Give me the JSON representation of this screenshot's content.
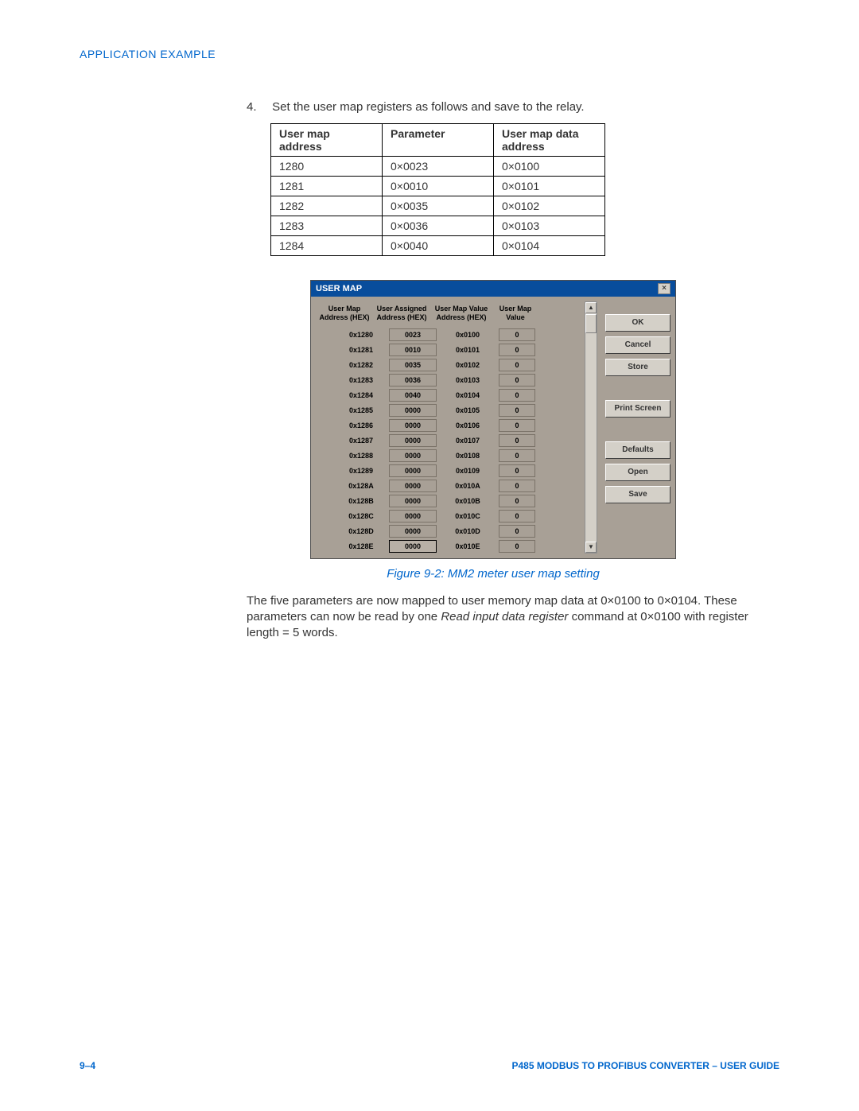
{
  "header": {
    "title": "APPLICATION EXAMPLE"
  },
  "step": {
    "num": "4.",
    "text": "Set the user map registers as follows and save to the relay."
  },
  "table": {
    "headers": {
      "c1": "User map address",
      "c2": "Parameter",
      "c3_line1": "User map data",
      "c3_line2": "address"
    },
    "rows": [
      {
        "c1": "1280",
        "c2": "0×0023",
        "c3": "0×0100"
      },
      {
        "c1": "1281",
        "c2": "0×0010",
        "c3": "0×0101"
      },
      {
        "c1": "1282",
        "c2": "0×0035",
        "c3": "0×0102"
      },
      {
        "c1": "1283",
        "c2": "0×0036",
        "c3": "0×0103"
      },
      {
        "c1": "1284",
        "c2": "0×0040",
        "c3": "0×0104"
      }
    ]
  },
  "dialog": {
    "title": "USER MAP",
    "close": "×",
    "headers": {
      "h1a": "User Map",
      "h1b": "Address (HEX)",
      "h2a": "User Assigned",
      "h2b": "Address (HEX)",
      "h3a": "User Map Value",
      "h3b": "Address (HEX)",
      "h4a": "User Map",
      "h4b": "Value"
    },
    "rows": [
      {
        "addr": "0x1280",
        "assigned": "0023",
        "valaddr": "0x0100",
        "val": "0"
      },
      {
        "addr": "0x1281",
        "assigned": "0010",
        "valaddr": "0x0101",
        "val": "0"
      },
      {
        "addr": "0x1282",
        "assigned": "0035",
        "valaddr": "0x0102",
        "val": "0"
      },
      {
        "addr": "0x1283",
        "assigned": "0036",
        "valaddr": "0x0103",
        "val": "0"
      },
      {
        "addr": "0x1284",
        "assigned": "0040",
        "valaddr": "0x0104",
        "val": "0"
      },
      {
        "addr": "0x1285",
        "assigned": "0000",
        "valaddr": "0x0105",
        "val": "0"
      },
      {
        "addr": "0x1286",
        "assigned": "0000",
        "valaddr": "0x0106",
        "val": "0"
      },
      {
        "addr": "0x1287",
        "assigned": "0000",
        "valaddr": "0x0107",
        "val": "0"
      },
      {
        "addr": "0x1288",
        "assigned": "0000",
        "valaddr": "0x0108",
        "val": "0"
      },
      {
        "addr": "0x1289",
        "assigned": "0000",
        "valaddr": "0x0109",
        "val": "0"
      },
      {
        "addr": "0x128A",
        "assigned": "0000",
        "valaddr": "0x010A",
        "val": "0"
      },
      {
        "addr": "0x128B",
        "assigned": "0000",
        "valaddr": "0x010B",
        "val": "0"
      },
      {
        "addr": "0x128C",
        "assigned": "0000",
        "valaddr": "0x010C",
        "val": "0"
      },
      {
        "addr": "0x128D",
        "assigned": "0000",
        "valaddr": "0x010D",
        "val": "0"
      },
      {
        "addr": "0x128E",
        "assigned": "0000",
        "valaddr": "0x010E",
        "val": "0"
      }
    ],
    "buttons": {
      "ok": "OK",
      "cancel": "Cancel",
      "store": "Store",
      "print": "Print Screen",
      "defaults": "Defaults",
      "open": "Open",
      "save": "Save"
    },
    "scroll": {
      "up": "▲",
      "down": "▼"
    }
  },
  "caption": "Figure 9-2: MM2 meter user map setting",
  "para": {
    "p1a": "The five parameters are now mapped to user memory map data at 0×0100 to 0×0104. These parameters can now be read by one ",
    "p1b": "Read input data register",
    "p1c": " command at 0×0100 with register length = 5 words."
  },
  "footer": {
    "left": "9–4",
    "right": "P485 MODBUS TO PROFIBUS CONVERTER – USER GUIDE"
  },
  "colors": {
    "link_blue": "#0066cc",
    "dialog_bg": "#a8a096",
    "titlebar_bg": "#084d9c",
    "button_bg": "#d4d0c8"
  }
}
